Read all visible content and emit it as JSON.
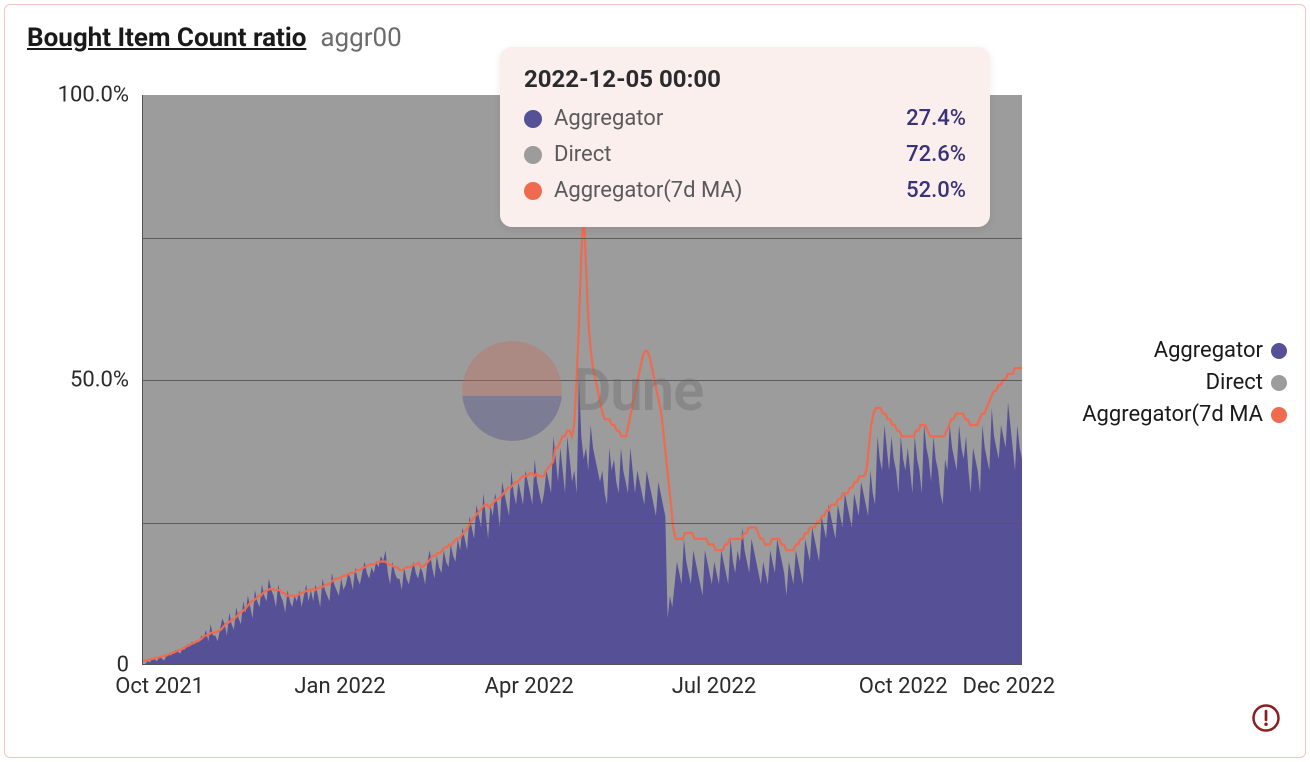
{
  "header": {
    "title": "Bought Item Count ratio",
    "subtitle": "aggr00"
  },
  "chart": {
    "type": "stacked-area-with-line",
    "background_color": "#ffffff",
    "grid_color": "#555555",
    "ylim": [
      0,
      100
    ],
    "y_ticks": [
      {
        "v": 0,
        "label": "0"
      },
      {
        "v": 50,
        "label": "50.0%"
      },
      {
        "v": 100,
        "label": "100.0%"
      }
    ],
    "y_gridlines": [
      25,
      50,
      75
    ],
    "x_ticks": [
      {
        "pos": 0.02,
        "label": "Oct 2021"
      },
      {
        "pos": 0.225,
        "label": "Jan 2022"
      },
      {
        "pos": 0.44,
        "label": "Apr 2022"
      },
      {
        "pos": 0.65,
        "label": "Jul 2022"
      },
      {
        "pos": 0.865,
        "label": "Oct 2022"
      },
      {
        "pos": 0.985,
        "label": "Dec 2022"
      }
    ],
    "series": {
      "direct": {
        "label": "Direct",
        "color": "#9c9c9c",
        "type": "area"
      },
      "aggregator": {
        "label": "Aggregator",
        "color": "#565197",
        "type": "area"
      },
      "aggregator_ma": {
        "label": "Aggregator(7d MA",
        "color": "#ef6a4f",
        "type": "line",
        "line_width": 2
      }
    },
    "aggregator_values": [
      0,
      0,
      0.5,
      0.3,
      1,
      0.8,
      0.5,
      1.2,
      1,
      0.6,
      1.4,
      1.8,
      1.5,
      2,
      2.5,
      2.2,
      1.8,
      3,
      2.5,
      3.5,
      3,
      4,
      3.5,
      4.2,
      3.8,
      5,
      4.5,
      6,
      4,
      7,
      5,
      5,
      4,
      6,
      8,
      7,
      5,
      9,
      7,
      6,
      10,
      8,
      7,
      11,
      9,
      12,
      10,
      8,
      13,
      11,
      10,
      14,
      12,
      11,
      15,
      13,
      12,
      10,
      14,
      12,
      11,
      9,
      13,
      11,
      10,
      12,
      11,
      13,
      10,
      12,
      14,
      11,
      13,
      11,
      14,
      12,
      10,
      15,
      13,
      12,
      11,
      16,
      14,
      13,
      12,
      15,
      13,
      14,
      16,
      15,
      13,
      17,
      15,
      14,
      16,
      18,
      16,
      15,
      17,
      16,
      18,
      17,
      19,
      18,
      20,
      16,
      14,
      18,
      16,
      15,
      15,
      13,
      17,
      15,
      14,
      16,
      18,
      16,
      15,
      17,
      16,
      14,
      18,
      20,
      17,
      15,
      19,
      17,
      16,
      20,
      18,
      17,
      21,
      19,
      18,
      22,
      20,
      24,
      22,
      20,
      26,
      24,
      22,
      28,
      26,
      24,
      30,
      26,
      22,
      28,
      26,
      30,
      28,
      24,
      32,
      30,
      28,
      26,
      34,
      30,
      28,
      32,
      30,
      28,
      34,
      32,
      30,
      28,
      36,
      32,
      30,
      28,
      30,
      34,
      32,
      30,
      40,
      36,
      32,
      38,
      34,
      30,
      40,
      36,
      32,
      34,
      30,
      50,
      40,
      36,
      38,
      34,
      42,
      38,
      36,
      34,
      32,
      34,
      30,
      28,
      38,
      34,
      36,
      32,
      30,
      38,
      34,
      32,
      30,
      38,
      34,
      30,
      34,
      32,
      30,
      28,
      34,
      32,
      30,
      28,
      26,
      32,
      30,
      28,
      26,
      8,
      12,
      10,
      14,
      18,
      16,
      14,
      22,
      18,
      16,
      14,
      20,
      18,
      16,
      14,
      12,
      20,
      18,
      16,
      14,
      18,
      16,
      14,
      20,
      18,
      16,
      14,
      22,
      18,
      16,
      20,
      18,
      24,
      20,
      18,
      16,
      22,
      20,
      18,
      16,
      14,
      18,
      16,
      14,
      20,
      18,
      16,
      22,
      20,
      18,
      16,
      12,
      18,
      16,
      14,
      20,
      18,
      16,
      14,
      22,
      20,
      18,
      24,
      22,
      20,
      18,
      26,
      24,
      22,
      28,
      26,
      24,
      22,
      28,
      26,
      24,
      30,
      28,
      26,
      24,
      30,
      28,
      26,
      32,
      30,
      28,
      26,
      34,
      30,
      28,
      40,
      36,
      34,
      42,
      38,
      34,
      40,
      36,
      34,
      30,
      40,
      36,
      34,
      38,
      34,
      30,
      40,
      36,
      34,
      30,
      42,
      38,
      36,
      32,
      40,
      36,
      34,
      30,
      28,
      36,
      34,
      42,
      38,
      36,
      34,
      42,
      38,
      36,
      40,
      34,
      30,
      38,
      36,
      34,
      30,
      42,
      38,
      36,
      34,
      45,
      40,
      38,
      36,
      42,
      40,
      38,
      46,
      42,
      38,
      34,
      42,
      38,
      36
    ],
    "ma_values": [
      0.5,
      0.6,
      0.7,
      0.8,
      0.9,
      1.0,
      1.1,
      1.2,
      1.3,
      1.4,
      1.5,
      1.7,
      1.9,
      2.0,
      2.2,
      2.4,
      2.5,
      2.7,
      3.0,
      3.2,
      3.4,
      3.6,
      3.8,
      4.0,
      4.2,
      4.5,
      5.0,
      5.0,
      5.2,
      5.5,
      5.5,
      5.5,
      5.8,
      6.0,
      6.5,
      7.0,
      7.2,
      7.5,
      7.8,
      8.0,
      8.5,
      9.0,
      9.2,
      9.5,
      10,
      10.5,
      11,
      11.2,
      11.5,
      12,
      12,
      12.5,
      12.8,
      13,
      13.2,
      13.2,
      13,
      13,
      13,
      12.5,
      12.5,
      12,
      12,
      12,
      12,
      12,
      12.2,
      12.5,
      12.5,
      12.8,
      13,
      13,
      13.2,
      13,
      13.2,
      13.5,
      13.5,
      13.8,
      14,
      14,
      14.5,
      14.8,
      15,
      15,
      15.2,
      15.5,
      15.5,
      15.8,
      16,
      16,
      16.2,
      16.5,
      16.5,
      16.8,
      17,
      17.2,
      17.5,
      17.5,
      17.5,
      17.8,
      18,
      18,
      18,
      18,
      17.5,
      17.5,
      17.2,
      17,
      17,
      16.5,
      16.5,
      16.8,
      17,
      17,
      17.2,
      17.5,
      17.5,
      17.8,
      17,
      17.2,
      17.5,
      18,
      18.5,
      19,
      19,
      19.5,
      19.5,
      20,
      20.5,
      20.5,
      21,
      21,
      21.5,
      22,
      22,
      22.5,
      23,
      23.5,
      24,
      25,
      25.5,
      26,
      26.5,
      27,
      27.5,
      28,
      28,
      27.5,
      28,
      28.5,
      29,
      29,
      29.5,
      30,
      30.5,
      31,
      31,
      31.5,
      32,
      32,
      32.5,
      33,
      33,
      33,
      33.5,
      33.5,
      33,
      33.5,
      33,
      33,
      33,
      34,
      34.5,
      35,
      35.5,
      38,
      38,
      39,
      40,
      40,
      41,
      41,
      40,
      42,
      50,
      60,
      72,
      80,
      70,
      60,
      55,
      52,
      50,
      48,
      46,
      44,
      43,
      43,
      43,
      42,
      42,
      41,
      41,
      40,
      40,
      40,
      42,
      44,
      46,
      48,
      50,
      52,
      54,
      55,
      55,
      54,
      52,
      50,
      48,
      46,
      44,
      40,
      36,
      32,
      28,
      24,
      22,
      22,
      22,
      22,
      23,
      23,
      23,
      23,
      22,
      22,
      22,
      22,
      22,
      22,
      21,
      21,
      21,
      20,
      20,
      20,
      20,
      21,
      21,
      22,
      22,
      22,
      22,
      22,
      22,
      23,
      23,
      24,
      24,
      24,
      24,
      23,
      22,
      22,
      21,
      21,
      21,
      22,
      22,
      22,
      22,
      21,
      21,
      20,
      20,
      20,
      20,
      21,
      21,
      22,
      22,
      23,
      23,
      24,
      24,
      24,
      25,
      25,
      26,
      26,
      27,
      27,
      28,
      28,
      28,
      29,
      29,
      30,
      30,
      30,
      31,
      31,
      32,
      32,
      33,
      33,
      33,
      34,
      38,
      42,
      44,
      45,
      45,
      45,
      44,
      44,
      43,
      43,
      42,
      42,
      41,
      41,
      40,
      40,
      40,
      40,
      40,
      40,
      41,
      41,
      42,
      42,
      42,
      41,
      40,
      40,
      40,
      40,
      40,
      40,
      40,
      41,
      42,
      43,
      43,
      44,
      44,
      44,
      44,
      43,
      43,
      42,
      42,
      42,
      42,
      43,
      44,
      44,
      45,
      46,
      47,
      48,
      48,
      49,
      49,
      50,
      50,
      51,
      51,
      51,
      52,
      52,
      52,
      52
    ]
  },
  "tooltip": {
    "title": "2022-12-05 00:00",
    "rows": [
      {
        "label": "Aggregator",
        "value": "27.4%",
        "color": "#565197"
      },
      {
        "label": "Direct",
        "value": "72.6%",
        "color": "#9c9c9c"
      },
      {
        "label": "Aggregator(7d MA)",
        "value": "52.0%",
        "color": "#ef6a4f"
      }
    ]
  },
  "legend": {
    "items": [
      {
        "label": "Aggregator",
        "color": "#565197"
      },
      {
        "label": "Direct",
        "color": "#9c9c9c"
      },
      {
        "label": "Aggregator(7d MA",
        "color": "#ef6a4f"
      }
    ]
  },
  "watermark": {
    "text": "Dune"
  },
  "warning_icon": {
    "color": "#8a1f1f"
  }
}
